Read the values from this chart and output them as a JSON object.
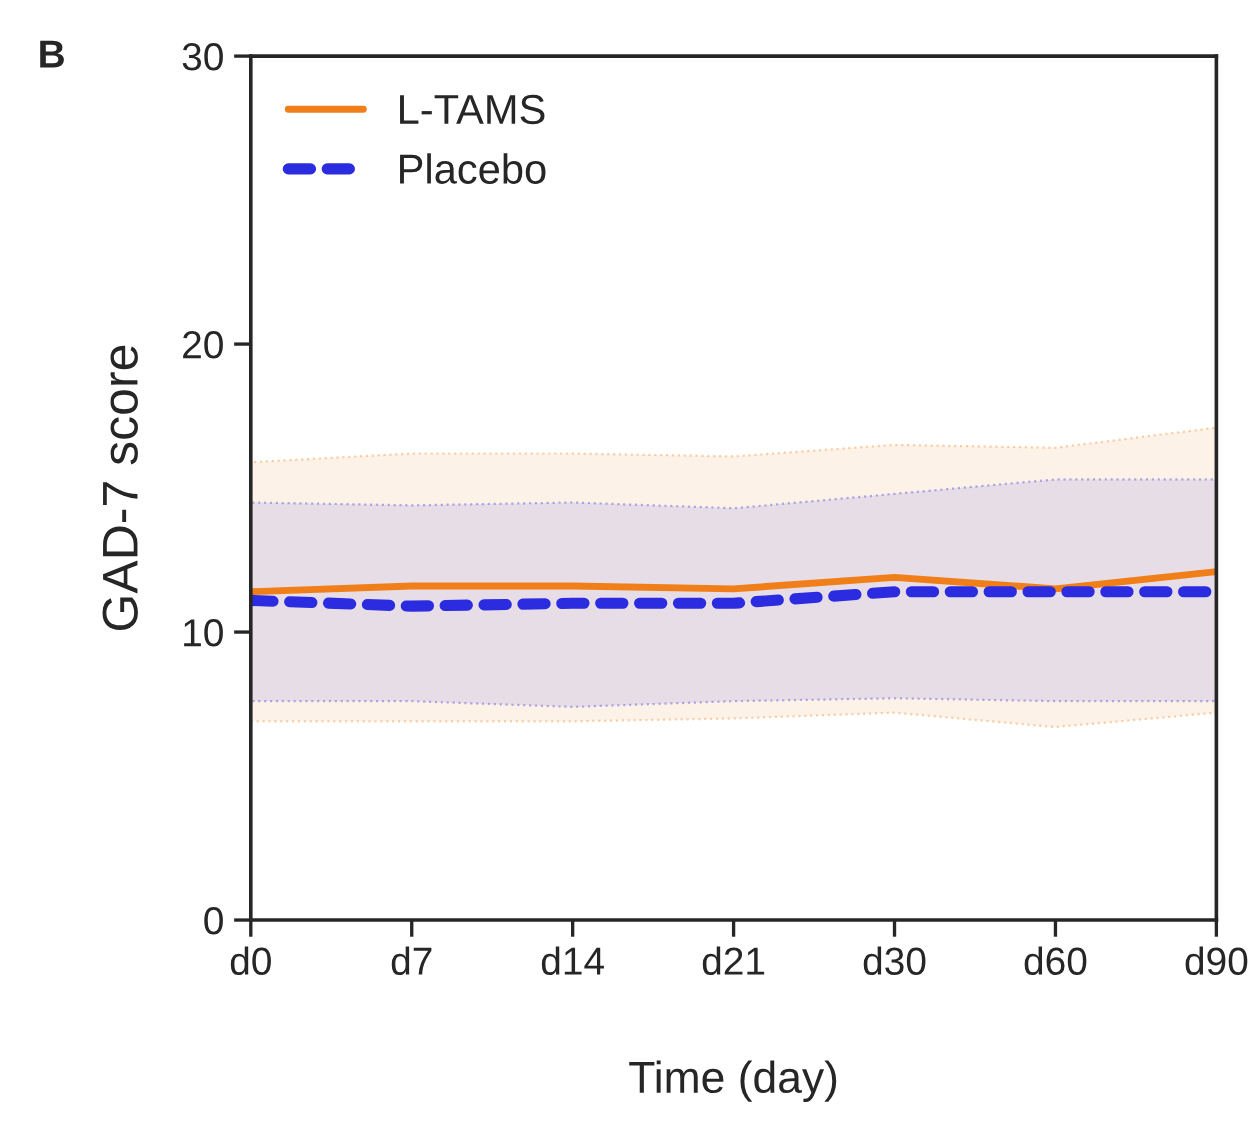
{
  "chart_data": {
    "type": "line",
    "title": "B",
    "xlabel": "Time (day)",
    "ylabel": "GAD-7 score",
    "categories": [
      "d0",
      "d7",
      "d14",
      "d21",
      "d30",
      "d60",
      "d90"
    ],
    "ylim": [
      0,
      30
    ],
    "yticks": [
      0,
      10,
      20,
      30
    ],
    "grid": false,
    "legend": "top left",
    "marker": "none",
    "series": [
      {
        "name": "L-TAMS",
        "color": "#f07f1a",
        "line_style": "solid",
        "values": [
          11.4,
          11.6,
          11.6,
          11.5,
          11.9,
          11.5,
          12.1
        ],
        "lower": [
          6.9,
          6.9,
          6.9,
          7.0,
          7.2,
          6.7,
          7.2
        ],
        "upper": [
          15.9,
          16.2,
          16.2,
          16.1,
          16.5,
          16.4,
          17.1
        ]
      },
      {
        "name": "Placebo",
        "color": "#2b2be0",
        "line_style": "dashed",
        "values": [
          11.1,
          10.9,
          11.0,
          11.0,
          11.4,
          11.4,
          11.4
        ],
        "lower": [
          7.6,
          7.6,
          7.4,
          7.6,
          7.7,
          7.6,
          7.6
        ],
        "upper": [
          14.5,
          14.4,
          14.5,
          14.3,
          14.8,
          15.3,
          15.3
        ]
      }
    ]
  }
}
